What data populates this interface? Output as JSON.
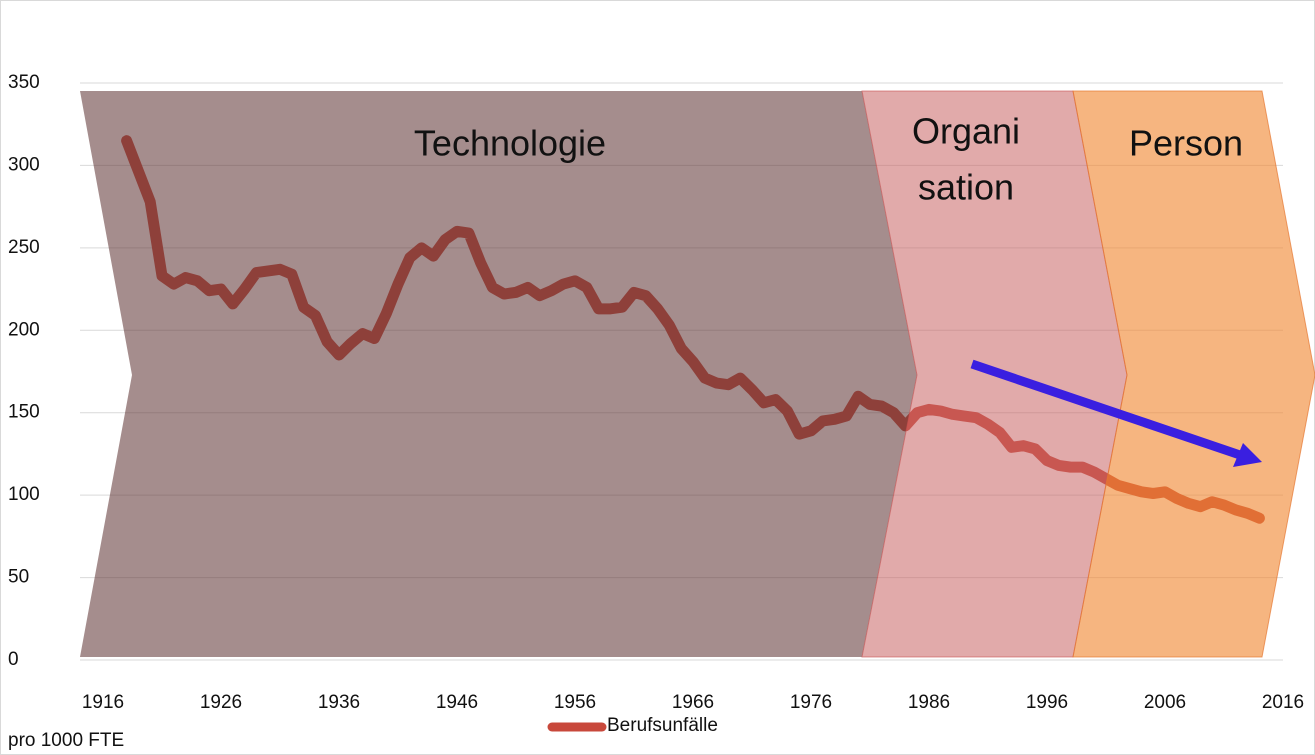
{
  "chart_data": {
    "type": "line",
    "x": [
      1918,
      1920,
      1921,
      1922,
      1923,
      1924,
      1925,
      1926,
      1927,
      1928,
      1929,
      1930,
      1931,
      1932,
      1933,
      1934,
      1935,
      1936,
      1937,
      1938,
      1939,
      1940,
      1941,
      1942,
      1943,
      1944,
      1945,
      1946,
      1947,
      1948,
      1949,
      1950,
      1951,
      1952,
      1953,
      1954,
      1955,
      1956,
      1957,
      1958,
      1959,
      1960,
      1961,
      1962,
      1963,
      1964,
      1965,
      1966,
      1967,
      1968,
      1969,
      1970,
      1971,
      1972,
      1973,
      1974,
      1975,
      1976,
      1977,
      1978,
      1979,
      1980,
      1981,
      1982,
      1983,
      1984,
      1985,
      1986,
      1987,
      1988,
      1989,
      1990,
      1991,
      1992,
      1993,
      1994,
      1995,
      1996,
      1997,
      1998,
      1999,
      2000,
      2001,
      2002,
      2003,
      2004,
      2005,
      2006,
      2007,
      2008,
      2009,
      2010,
      2011,
      2012,
      2013,
      2014
    ],
    "series": [
      {
        "name": "Berufsunfälle",
        "color": "#c8483b",
        "values": [
          315,
          278,
          233,
          228,
          232,
          230,
          224,
          225,
          216,
          225,
          235,
          236,
          237,
          234,
          214,
          209,
          193,
          185,
          192,
          198,
          195,
          210,
          228,
          244,
          250,
          245,
          255,
          260,
          259,
          241,
          226,
          222,
          223,
          226,
          221,
          224,
          228,
          230,
          226,
          213,
          213,
          214,
          223,
          221,
          213,
          203,
          189,
          181,
          171,
          168,
          167,
          171,
          164,
          156,
          158,
          151,
          137,
          139,
          145,
          146,
          148,
          160,
          155,
          154,
          150,
          142,
          150,
          152,
          151,
          149,
          148,
          147,
          143,
          138,
          129,
          130,
          128,
          121,
          118,
          117,
          117,
          114,
          110,
          106,
          104,
          102,
          101,
          102,
          98,
          95,
          93,
          96,
          94,
          91,
          89,
          86
        ]
      }
    ],
    "xlim": [
      1916,
      2016
    ],
    "xticks": [
      1916,
      1926,
      1936,
      1946,
      1956,
      1966,
      1976,
      1986,
      1996,
      2006,
      2016
    ],
    "ylim": [
      0,
      350
    ],
    "yticks": [
      0,
      50,
      100,
      150,
      200,
      250,
      300,
      350
    ],
    "grid": true,
    "ylabel": "pro 1000 FTE",
    "annotations": {
      "technologie": "Technologie",
      "organisation": [
        "Organi",
        "sation"
      ],
      "person": "Person"
    }
  }
}
